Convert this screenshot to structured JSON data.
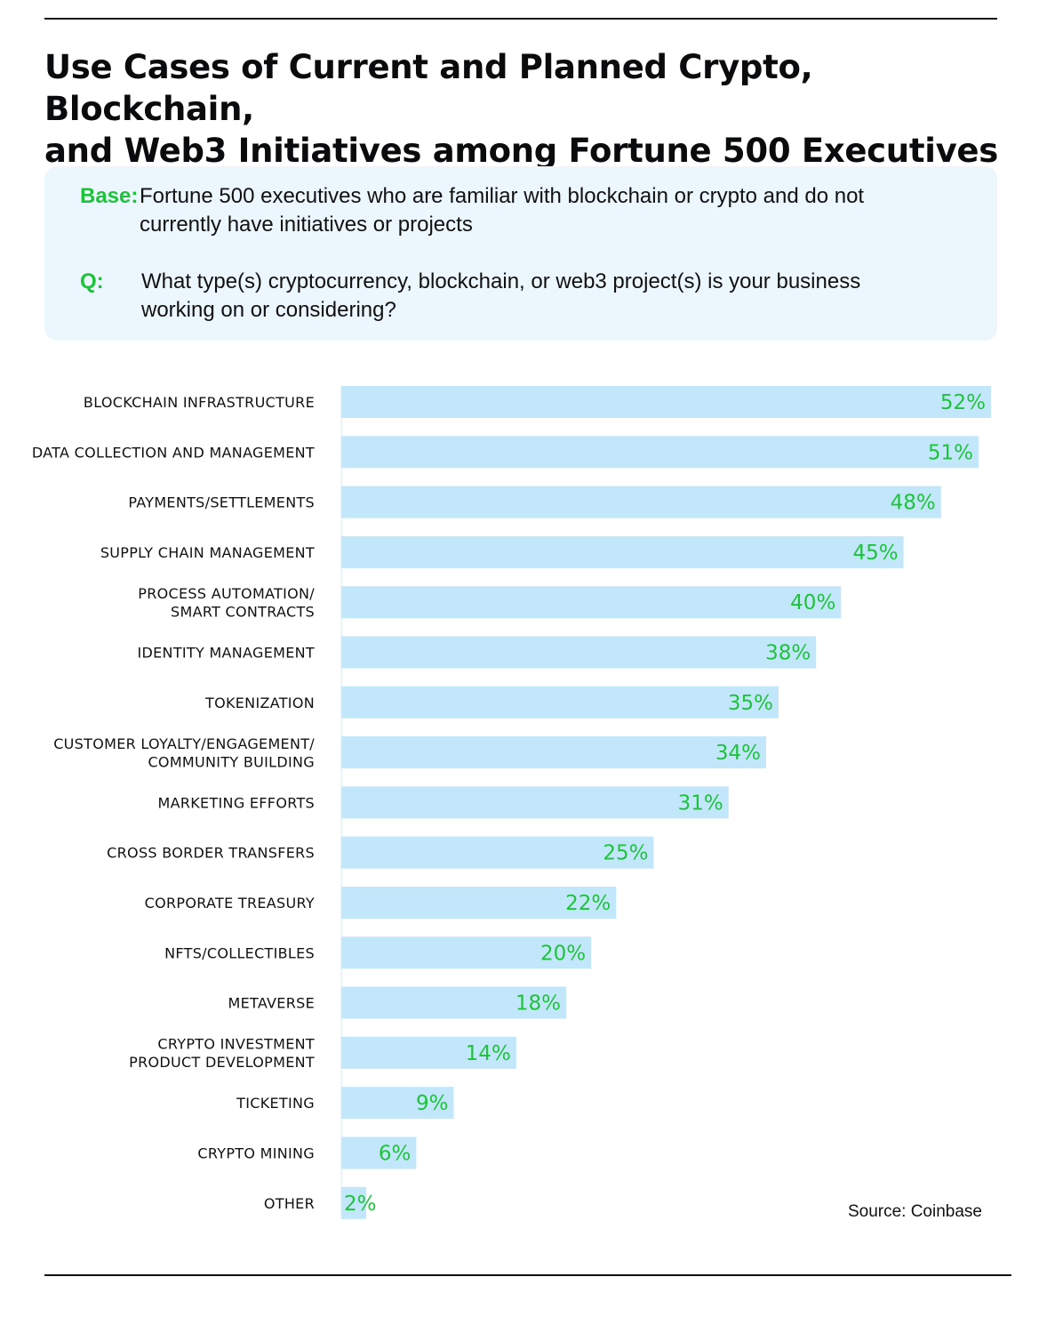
{
  "title_line1": "Use Cases of Current and Planned Crypto, Blockchain,",
  "title_line2": "and Web3 Initiatives among Fortune 500 Executives",
  "info": {
    "base_key": "Base:",
    "base_text": "Fortune 500 executives who are familiar with blockchain or crypto and do not currently have initiatives or projects",
    "q_key": "Q:",
    "q_text": "What type(s) cryptocurrency, blockchain, or web3 project(s) is your business working on or considering?"
  },
  "source": "Source: Coinbase",
  "colors": {
    "bar": "#c2e7fb",
    "value_text": "#1fc23b",
    "accent": "#1fc23b",
    "box": "#ebf6fd"
  },
  "chart_data": {
    "type": "bar",
    "orientation": "horizontal",
    "categories": [
      [
        "BLOCKCHAIN INFRASTRUCTURE"
      ],
      [
        "DATA COLLECTION AND MANAGEMENT"
      ],
      [
        "PAYMENTS/SETTLEMENTS"
      ],
      [
        "SUPPLY CHAIN MANAGEMENT"
      ],
      [
        "PROCESS AUTOMATION/",
        "SMART CONTRACTS"
      ],
      [
        "IDENTITY MANAGEMENT"
      ],
      [
        "TOKENIZATION"
      ],
      [
        "CUSTOMER LOYALTY/ENGAGEMENT/",
        "COMMUNITY BUILDING"
      ],
      [
        "MARKETING EFFORTS"
      ],
      [
        "CROSS BORDER TRANSFERS"
      ],
      [
        "CORPORATE TREASURY"
      ],
      [
        "NFTS/COLLECTIBLES"
      ],
      [
        "METAVERSE"
      ],
      [
        "CRYPTO INVESTMENT",
        "PRODUCT DEVELOPMENT"
      ],
      [
        "TICKETING"
      ],
      [
        "CRYPTO MINING"
      ],
      [
        "OTHER"
      ]
    ],
    "values": [
      52,
      51,
      48,
      45,
      40,
      38,
      35,
      34,
      31,
      25,
      22,
      20,
      18,
      14,
      9,
      6,
      2
    ],
    "value_labels": [
      "52%",
      "51%",
      "48%",
      "45%",
      "40%",
      "38%",
      "35%",
      "34%",
      "31%",
      "25%",
      "22%",
      "20%",
      "18%",
      "14%",
      "9%",
      "6%",
      "2%"
    ],
    "unit": "%",
    "xlim": [
      0,
      52
    ]
  }
}
